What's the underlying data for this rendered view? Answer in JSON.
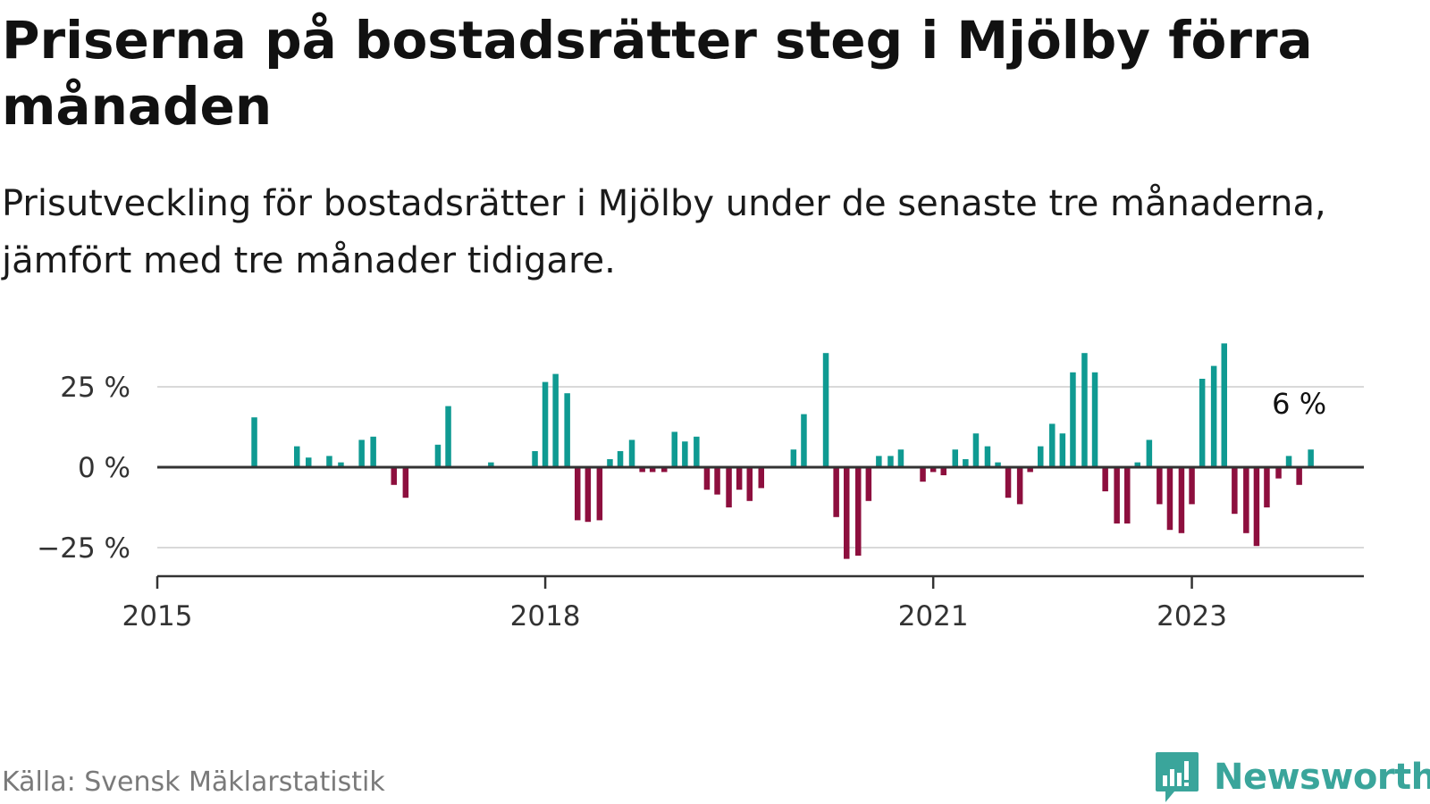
{
  "header": {
    "title": "Priserna på bostadsrätter steg i Mjölby förra månaden",
    "subtitle": "Prisutveckling för bostadsrätter i Mjölby under de senaste tre månaderna, jämfört med tre månader tidigare."
  },
  "footer": {
    "source": "Källa: Svensk Mäklarstatistik",
    "brand": "Newsworthy"
  },
  "colors": {
    "positive": "#0f9a92",
    "negative": "#8d0f3e",
    "grid": "#d9d9d9",
    "axis": "#333333",
    "brand": "#3aa59b"
  },
  "chart_data": {
    "type": "bar",
    "x_label": "",
    "y_label": "",
    "ylim": [
      -33,
      40
    ],
    "y_ticks": [
      {
        "value": 25,
        "label": "25 %"
      },
      {
        "value": 0,
        "label": "0 %"
      },
      {
        "value": -25,
        "label": "−25 %"
      }
    ],
    "x_ticks": [
      {
        "value": 2015.0,
        "label": "2015"
      },
      {
        "value": 2018.0,
        "label": "2018"
      },
      {
        "value": 2021.0,
        "label": "2021"
      },
      {
        "value": 2023.0,
        "label": "2023"
      }
    ],
    "x_range": [
      2015.0,
      2024.33
    ],
    "grid": true,
    "legend": "none",
    "annotation": {
      "label": "6 %",
      "x": 2023.83,
      "y": 5.5
    },
    "series": [
      {
        "bars": [
          {
            "x": 2015.75,
            "y": 15.5
          },
          {
            "x": 2016.08,
            "y": 6.5
          },
          {
            "x": 2016.17,
            "y": 3.0
          },
          {
            "x": 2016.33,
            "y": 3.5
          },
          {
            "x": 2016.42,
            "y": 1.5
          },
          {
            "x": 2016.58,
            "y": 8.5
          },
          {
            "x": 2016.67,
            "y": 9.5
          },
          {
            "x": 2016.83,
            "y": -5.5
          },
          {
            "x": 2016.92,
            "y": -9.5
          },
          {
            "x": 2017.17,
            "y": 7.0
          },
          {
            "x": 2017.25,
            "y": 19.0
          },
          {
            "x": 2017.58,
            "y": 1.5
          },
          {
            "x": 2017.92,
            "y": 5.0
          },
          {
            "x": 2018.0,
            "y": 26.5
          },
          {
            "x": 2018.08,
            "y": 29.0
          },
          {
            "x": 2018.17,
            "y": 23.0
          },
          {
            "x": 2018.25,
            "y": -16.5
          },
          {
            "x": 2018.33,
            "y": -17.0
          },
          {
            "x": 2018.42,
            "y": -16.5
          },
          {
            "x": 2018.5,
            "y": 2.5
          },
          {
            "x": 2018.58,
            "y": 5.0
          },
          {
            "x": 2018.67,
            "y": 8.5
          },
          {
            "x": 2018.75,
            "y": -1.5
          },
          {
            "x": 2018.83,
            "y": -1.5
          },
          {
            "x": 2018.92,
            "y": -1.5
          },
          {
            "x": 2019.0,
            "y": 11.0
          },
          {
            "x": 2019.08,
            "y": 8.0
          },
          {
            "x": 2019.17,
            "y": 9.5
          },
          {
            "x": 2019.25,
            "y": -7.0
          },
          {
            "x": 2019.33,
            "y": -8.5
          },
          {
            "x": 2019.42,
            "y": -12.5
          },
          {
            "x": 2019.5,
            "y": -7.0
          },
          {
            "x": 2019.58,
            "y": -10.5
          },
          {
            "x": 2019.67,
            "y": -6.5
          },
          {
            "x": 2019.92,
            "y": 5.5
          },
          {
            "x": 2020.0,
            "y": 16.5
          },
          {
            "x": 2020.17,
            "y": 35.5
          },
          {
            "x": 2020.25,
            "y": -15.5
          },
          {
            "x": 2020.33,
            "y": -28.5
          },
          {
            "x": 2020.42,
            "y": -27.5
          },
          {
            "x": 2020.5,
            "y": -10.5
          },
          {
            "x": 2020.58,
            "y": 3.5
          },
          {
            "x": 2020.67,
            "y": 3.5
          },
          {
            "x": 2020.75,
            "y": 5.5
          },
          {
            "x": 2020.92,
            "y": -4.5
          },
          {
            "x": 2021.0,
            "y": -1.5
          },
          {
            "x": 2021.08,
            "y": -2.5
          },
          {
            "x": 2021.17,
            "y": 5.5
          },
          {
            "x": 2021.25,
            "y": 2.5
          },
          {
            "x": 2021.33,
            "y": 10.5
          },
          {
            "x": 2021.42,
            "y": 6.5
          },
          {
            "x": 2021.5,
            "y": 1.5
          },
          {
            "x": 2021.58,
            "y": -9.5
          },
          {
            "x": 2021.67,
            "y": -11.5
          },
          {
            "x": 2021.75,
            "y": -1.5
          },
          {
            "x": 2021.83,
            "y": 6.5
          },
          {
            "x": 2021.92,
            "y": 13.5
          },
          {
            "x": 2022.0,
            "y": 10.5
          },
          {
            "x": 2022.08,
            "y": 29.5
          },
          {
            "x": 2022.17,
            "y": 35.5
          },
          {
            "x": 2022.25,
            "y": 29.5
          },
          {
            "x": 2022.33,
            "y": -7.5
          },
          {
            "x": 2022.42,
            "y": -17.5
          },
          {
            "x": 2022.5,
            "y": -17.5
          },
          {
            "x": 2022.58,
            "y": 1.5
          },
          {
            "x": 2022.67,
            "y": 8.5
          },
          {
            "x": 2022.75,
            "y": -11.5
          },
          {
            "x": 2022.83,
            "y": -19.5
          },
          {
            "x": 2022.92,
            "y": -20.5
          },
          {
            "x": 2023.0,
            "y": -11.5
          },
          {
            "x": 2023.08,
            "y": 27.5
          },
          {
            "x": 2023.17,
            "y": 31.5
          },
          {
            "x": 2023.25,
            "y": 38.5
          },
          {
            "x": 2023.33,
            "y": -14.5
          },
          {
            "x": 2023.42,
            "y": -20.5
          },
          {
            "x": 2023.5,
            "y": -24.5
          },
          {
            "x": 2023.58,
            "y": -12.5
          },
          {
            "x": 2023.67,
            "y": -3.5
          },
          {
            "x": 2023.75,
            "y": 3.5
          },
          {
            "x": 2023.83,
            "y": -5.5
          },
          {
            "x": 2023.92,
            "y": 5.5
          }
        ]
      }
    ]
  }
}
